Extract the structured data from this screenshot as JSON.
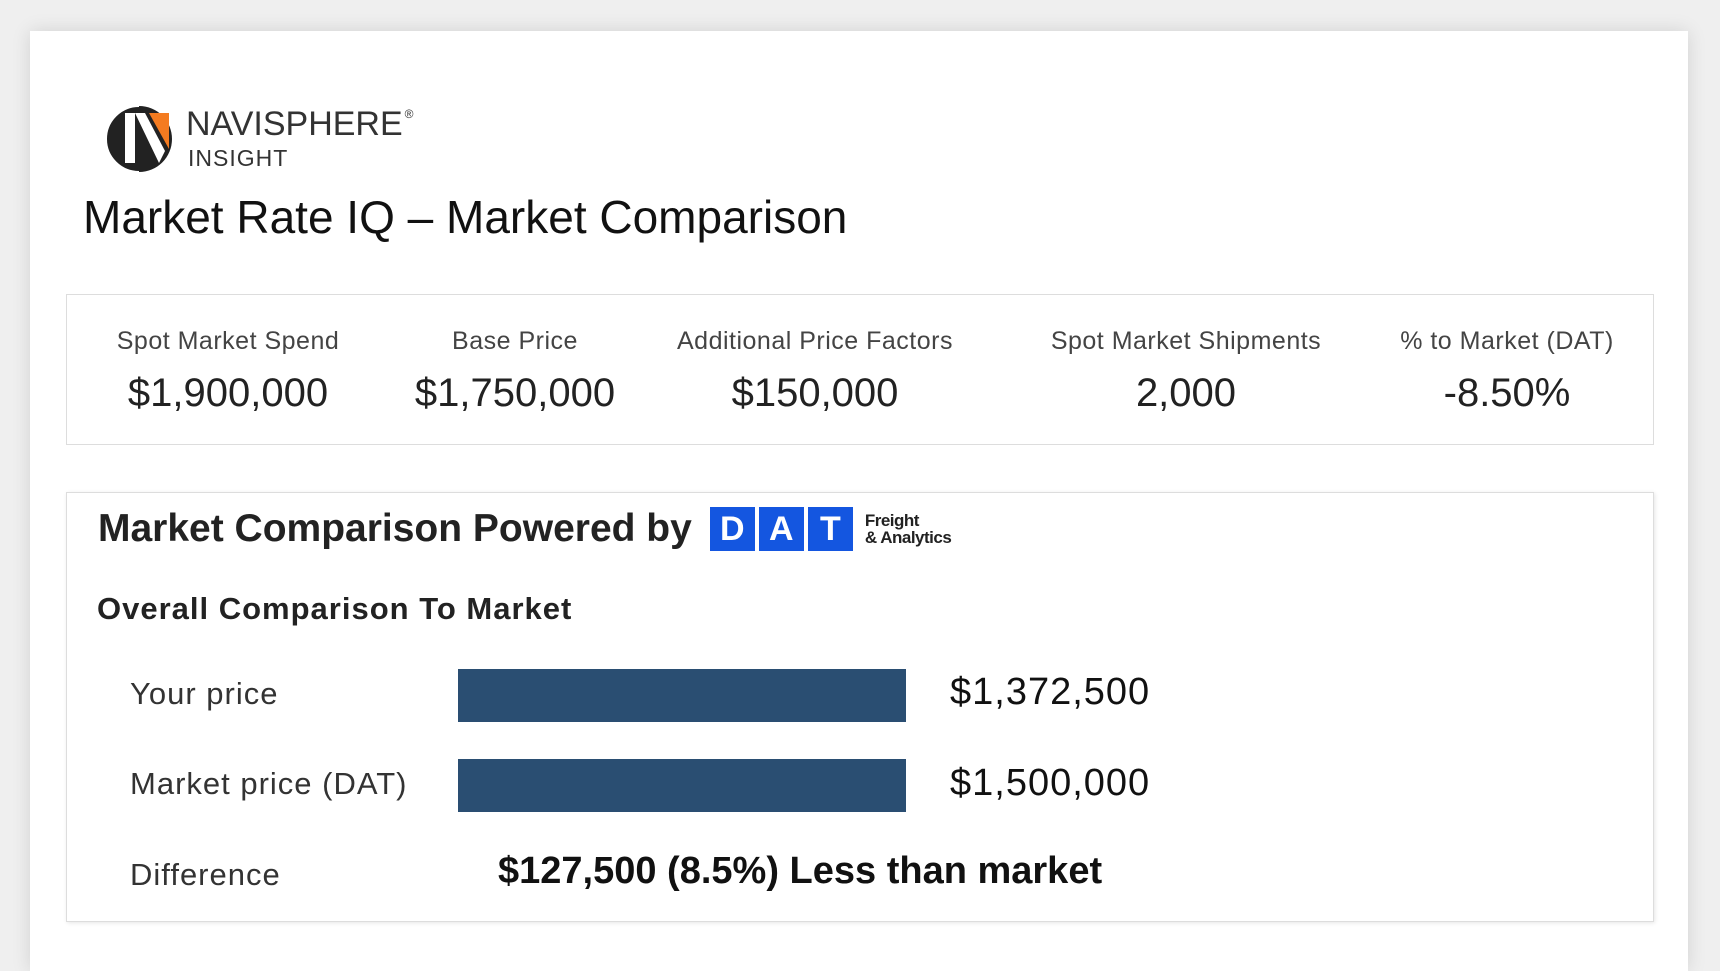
{
  "logo": {
    "brand": "NAVISPHERE",
    "registered": "®",
    "product": "INSIGHT",
    "accent": "#f47b20"
  },
  "page_title": "Market Rate IQ – Market Comparison",
  "stats": [
    {
      "label": "Spot Market Spend",
      "value": "$1,900,000"
    },
    {
      "label": "Base Price",
      "value": "$1,750,000"
    },
    {
      "label": "Additional Price Factors",
      "value": "$150,000"
    },
    {
      "label": "Spot Market Shipments",
      "value": "2,000"
    },
    {
      "label": "% to Market (DAT)",
      "value": "-8.50%"
    }
  ],
  "comparison": {
    "title": "Market Comparison Powered by",
    "dat_logo": {
      "letters": [
        "D",
        "A",
        "T"
      ],
      "line1": "Freight",
      "line2": "& Analytics",
      "color": "#1456e0"
    },
    "subtitle": "Overall Comparison To Market",
    "bar_color": "#2a4e72",
    "rows": [
      {
        "label": "Your price",
        "value": "$1,372,500"
      },
      {
        "label": "Market price (DAT)",
        "value": "$1,500,000"
      }
    ],
    "difference_label": "Difference",
    "difference_text": "$127,500 (8.5%) Less than market"
  }
}
